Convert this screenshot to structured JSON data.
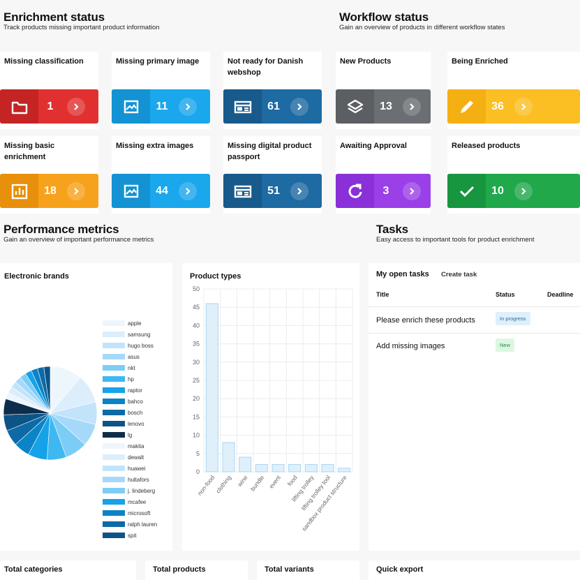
{
  "enrichment": {
    "title": "Enrichment status",
    "subtitle": "Track products missing important product information",
    "cards": [
      {
        "label": "Missing classification",
        "count": "1",
        "icon": "folder-icon",
        "color": "#e03130",
        "dark": "#c52424"
      },
      {
        "label": "Missing primary image",
        "count": "11",
        "icon": "image-icon",
        "color": "#1aa7ec",
        "dark": "#1393d3"
      },
      {
        "label": "Not ready for Danish webshop",
        "count": "61",
        "icon": "web-icon",
        "color": "#1e6aa3",
        "dark": "#185a8c"
      },
      {
        "label": "Missing basic enrichment",
        "count": "18",
        "icon": "bar-chart-icon",
        "color": "#f7a21c",
        "dark": "#e88f0b"
      },
      {
        "label": "Missing extra images",
        "count": "44",
        "icon": "image-icon",
        "color": "#1aa7ec",
        "dark": "#1393d3"
      },
      {
        "label": "Missing digital product passport",
        "count": "51",
        "icon": "web-icon",
        "color": "#1e6aa3",
        "dark": "#185a8c"
      }
    ]
  },
  "workflow": {
    "title": "Workflow status",
    "subtitle": "Gain an overview of products in different workflow states",
    "cards": [
      {
        "label": "New Products",
        "count": "13",
        "icon": "layers-icon",
        "color": "#6b6e72",
        "dark": "#5b5e62"
      },
      {
        "label": "Being Enriched",
        "count": "36",
        "icon": "pencil-icon",
        "color": "#fbbf24",
        "dark": "#f4b013"
      },
      {
        "label": "Awaiting Approval",
        "count": "3",
        "icon": "refresh-icon",
        "color": "#9b40e8",
        "dark": "#8a30d8"
      },
      {
        "label": "Released products",
        "count": "10",
        "icon": "check-icon",
        "color": "#20a84b",
        "dark": "#17953f"
      }
    ]
  },
  "performance": {
    "title": "Performance metrics",
    "subtitle": "Gain an overview of important performance metrics"
  },
  "brands_panel": {
    "title": "Electronic brands"
  },
  "product_types_panel": {
    "title": "Product types"
  },
  "chart_data": [
    {
      "type": "pie",
      "title": "Electronic brands",
      "categories": [
        "apple",
        "samsung",
        "hugo boss",
        "asus",
        "nkt",
        "hp",
        "raptor",
        "bahco",
        "bosch",
        "lenovo",
        "lg",
        "makita",
        "dewalt",
        "huawei",
        "hultafors",
        "j. lindeberg",
        "mcafee",
        "microsoft",
        "ralph lauren",
        "spit"
      ],
      "values": [
        10,
        9,
        7,
        7,
        7,
        6,
        6,
        5,
        5,
        5,
        5,
        2,
        2,
        2,
        2,
        2,
        2,
        2,
        2,
        2
      ],
      "colors": [
        "#eef6fd",
        "#dceefc",
        "#c2e4fb",
        "#a6d9f9",
        "#7ccdf6",
        "#3fb8f2",
        "#16a2e8",
        "#0a84c6",
        "#0e6aa6",
        "#0d5486",
        "#0c2e4a",
        "#eef6fd",
        "#dceefc",
        "#c2e4fb",
        "#a6d9f9",
        "#7ccdf6",
        "#16a2e8",
        "#0a84c6",
        "#0e6aa6",
        "#0d5486"
      ]
    },
    {
      "type": "bar",
      "title": "Product types",
      "categories": [
        "non-food",
        "clothing",
        "wine",
        "bundle",
        "event",
        "food",
        "lifting trolley",
        "lifting trolley tool",
        "sandbox product structure"
      ],
      "values": [
        46,
        8,
        4,
        2,
        2,
        2,
        2,
        2,
        1
      ],
      "ylim": [
        0,
        50
      ],
      "yticks": [
        0,
        5,
        10,
        15,
        20,
        25,
        30,
        35,
        40,
        45,
        50
      ],
      "bar_color": "#dff0fb",
      "bar_border": "#a8d6f3"
    }
  ],
  "tasks": {
    "title": "Tasks",
    "subtitle": "Easy access to important tools for product enrichment",
    "tab_open": "My open tasks",
    "tab_create": "Create task",
    "col_title": "Title",
    "col_status": "Status",
    "col_deadline": "Deadline",
    "rows": [
      {
        "title": "Please enrich these products",
        "status": "In progress",
        "bg": "#dff0fb",
        "fg": "#1e6aa3"
      },
      {
        "title": "Add missing images",
        "status": "New",
        "bg": "#ddf6e3",
        "fg": "#17953f"
      }
    ]
  },
  "bottom": {
    "total_categories": "Total categories",
    "total_products": "Total products",
    "total_variants": "Total variants",
    "quick_export": "Quick export"
  }
}
